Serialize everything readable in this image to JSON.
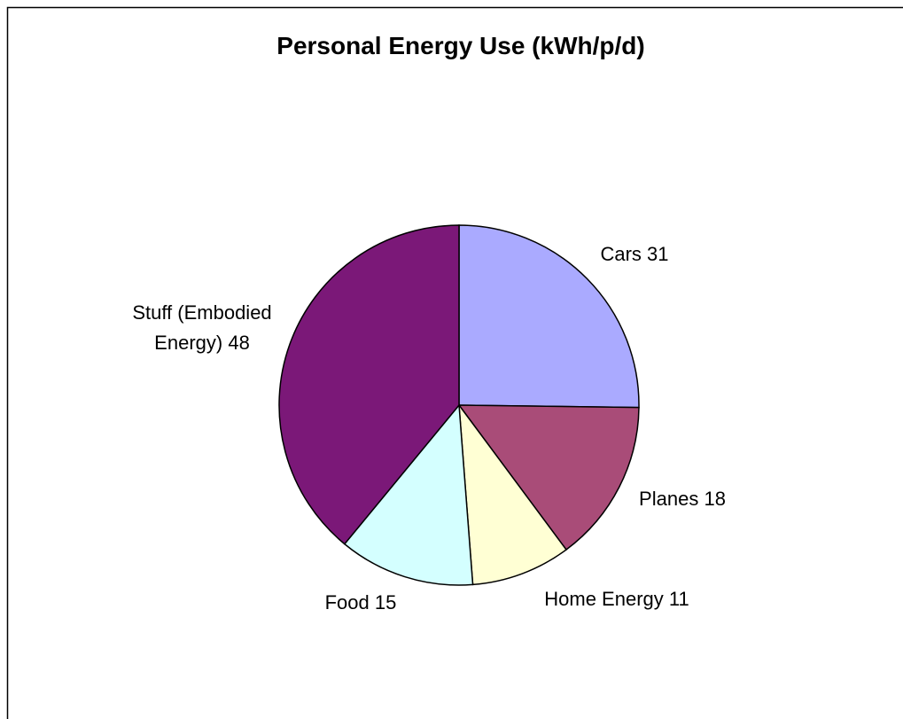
{
  "chart_data": {
    "type": "pie",
    "title": "Personal Energy Use (kWh/p/d)",
    "categories": [
      "Cars",
      "Planes",
      "Home Energy",
      "Food",
      "Stuff (Embodied Energy)"
    ],
    "values": [
      31,
      18,
      11,
      15,
      48
    ],
    "colors": [
      "#aaaaff",
      "#a94c78",
      "#ffffd4",
      "#d4ffff",
      "#7b1878"
    ]
  }
}
